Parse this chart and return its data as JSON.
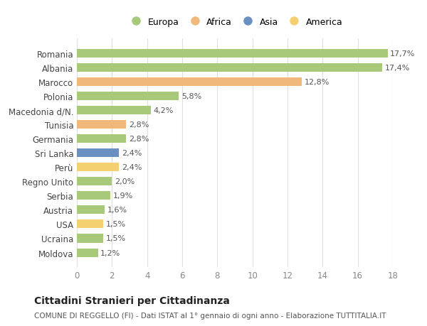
{
  "countries": [
    "Romania",
    "Albania",
    "Marocco",
    "Polonia",
    "Macedonia d/N.",
    "Tunisia",
    "Germania",
    "Sri Lanka",
    "Perù",
    "Regno Unito",
    "Serbia",
    "Austria",
    "USA",
    "Ucraina",
    "Moldova"
  ],
  "values": [
    17.7,
    17.4,
    12.8,
    5.8,
    4.2,
    2.8,
    2.8,
    2.4,
    2.4,
    2.0,
    1.9,
    1.6,
    1.5,
    1.5,
    1.2
  ],
  "labels": [
    "17,7%",
    "17,4%",
    "12,8%",
    "5,8%",
    "4,2%",
    "2,8%",
    "2,8%",
    "2,4%",
    "2,4%",
    "2,0%",
    "1,9%",
    "1,6%",
    "1,5%",
    "1,5%",
    "1,2%"
  ],
  "continents": [
    "Europa",
    "Europa",
    "Africa",
    "Europa",
    "Europa",
    "Africa",
    "Europa",
    "Asia",
    "America",
    "Europa",
    "Europa",
    "Europa",
    "America",
    "Europa",
    "Europa"
  ],
  "colors": {
    "Europa": "#a8c87a",
    "Africa": "#f0b87a",
    "Asia": "#6a8fc0",
    "America": "#f5d070"
  },
  "legend_order": [
    "Europa",
    "Africa",
    "Asia",
    "America"
  ],
  "title": "Cittadini Stranieri per Cittadinanza",
  "subtitle": "COMUNE DI REGGELLO (FI) - Dati ISTAT al 1° gennaio di ogni anno - Elaborazione TUTTITALIA.IT",
  "xlim": [
    0,
    18
  ],
  "xticks": [
    0,
    2,
    4,
    6,
    8,
    10,
    12,
    14,
    16,
    18
  ],
  "bg_color": "#ffffff",
  "grid_color": "#e0e0e0",
  "bar_height": 0.6
}
